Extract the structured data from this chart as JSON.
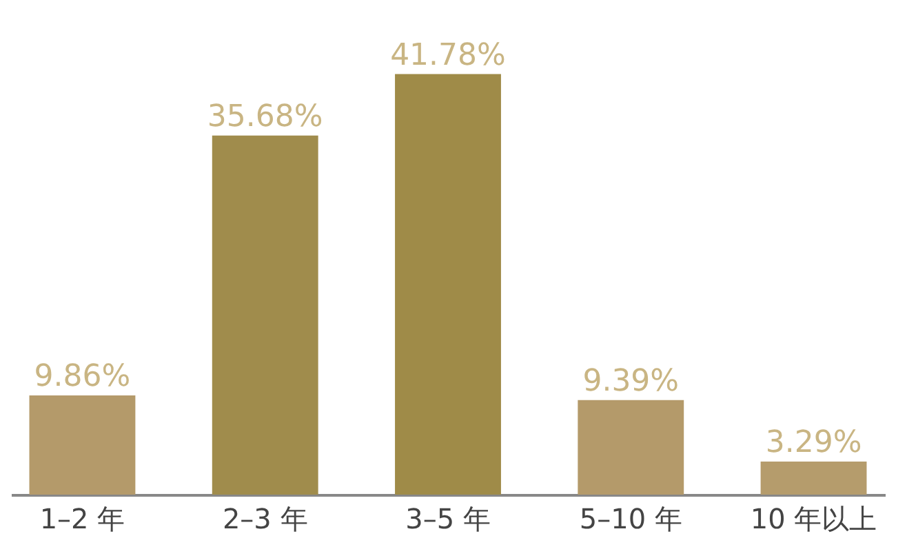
{
  "chart_data": {
    "type": "bar",
    "categories": [
      "1–2 年",
      "2–3 年",
      "3–5 年",
      "5–10 年",
      "10 年以上"
    ],
    "values": [
      9.86,
      35.68,
      41.78,
      9.39,
      3.29
    ],
    "value_labels": [
      "9.86%",
      "35.68%",
      "41.78%",
      "9.39%",
      "3.29%"
    ],
    "colors": [
      "#b49a6a",
      "#a08c4c",
      "#9f8b48",
      "#b49a6a",
      "#b59c6c"
    ],
    "tick_labels": "x"
  }
}
